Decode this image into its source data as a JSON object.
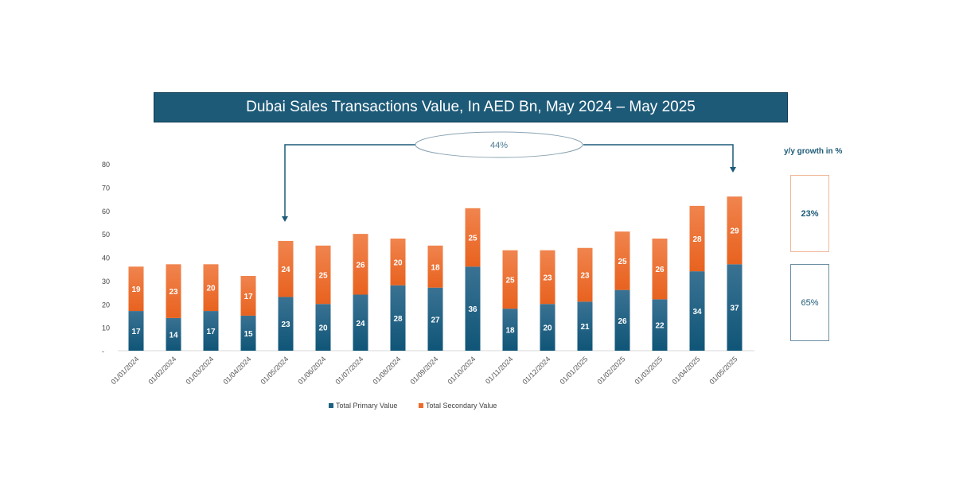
{
  "chart_data": {
    "type": "bar",
    "stacked": true,
    "title": "Dubai Sales Transactions Value, In AED Bn, May 2024 – May 2025",
    "categories": [
      "01/01/2024",
      "01/02/2024",
      "01/03/2024",
      "01/04/2024",
      "01/05/2024",
      "01/06/2024",
      "01/07/2024",
      "01/08/2024",
      "01/09/2024",
      "01/10/2024",
      "01/11/2024",
      "01/12/2024",
      "01/01/2025",
      "01/02/2025",
      "01/03/2025",
      "01/04/2025",
      "01/05/2025"
    ],
    "series": [
      {
        "name": "Total Primary Value",
        "color": "#1d5f80",
        "values": [
          17,
          14,
          17,
          15,
          23,
          20,
          24,
          28,
          27,
          36,
          18,
          20,
          21,
          26,
          22,
          34,
          37
        ]
      },
      {
        "name": "Total Secondary Value",
        "color": "#ee6a2a",
        "values": [
          19,
          23,
          20,
          17,
          24,
          25,
          26,
          20,
          18,
          25,
          25,
          23,
          23,
          25,
          26,
          28,
          29
        ]
      }
    ],
    "yticks": [
      "-",
      "10",
      "20",
      "30",
      "40",
      "50",
      "60",
      "70",
      "80"
    ],
    "ylim": [
      0,
      80
    ],
    "grid": false,
    "legend": "bottom",
    "annotation": {
      "label": "44%",
      "from": "01/05/2024",
      "to": "01/05/2025"
    }
  },
  "growth_panel": {
    "title": "y/y growth in %",
    "secondary": "23%",
    "primary": "65%"
  }
}
